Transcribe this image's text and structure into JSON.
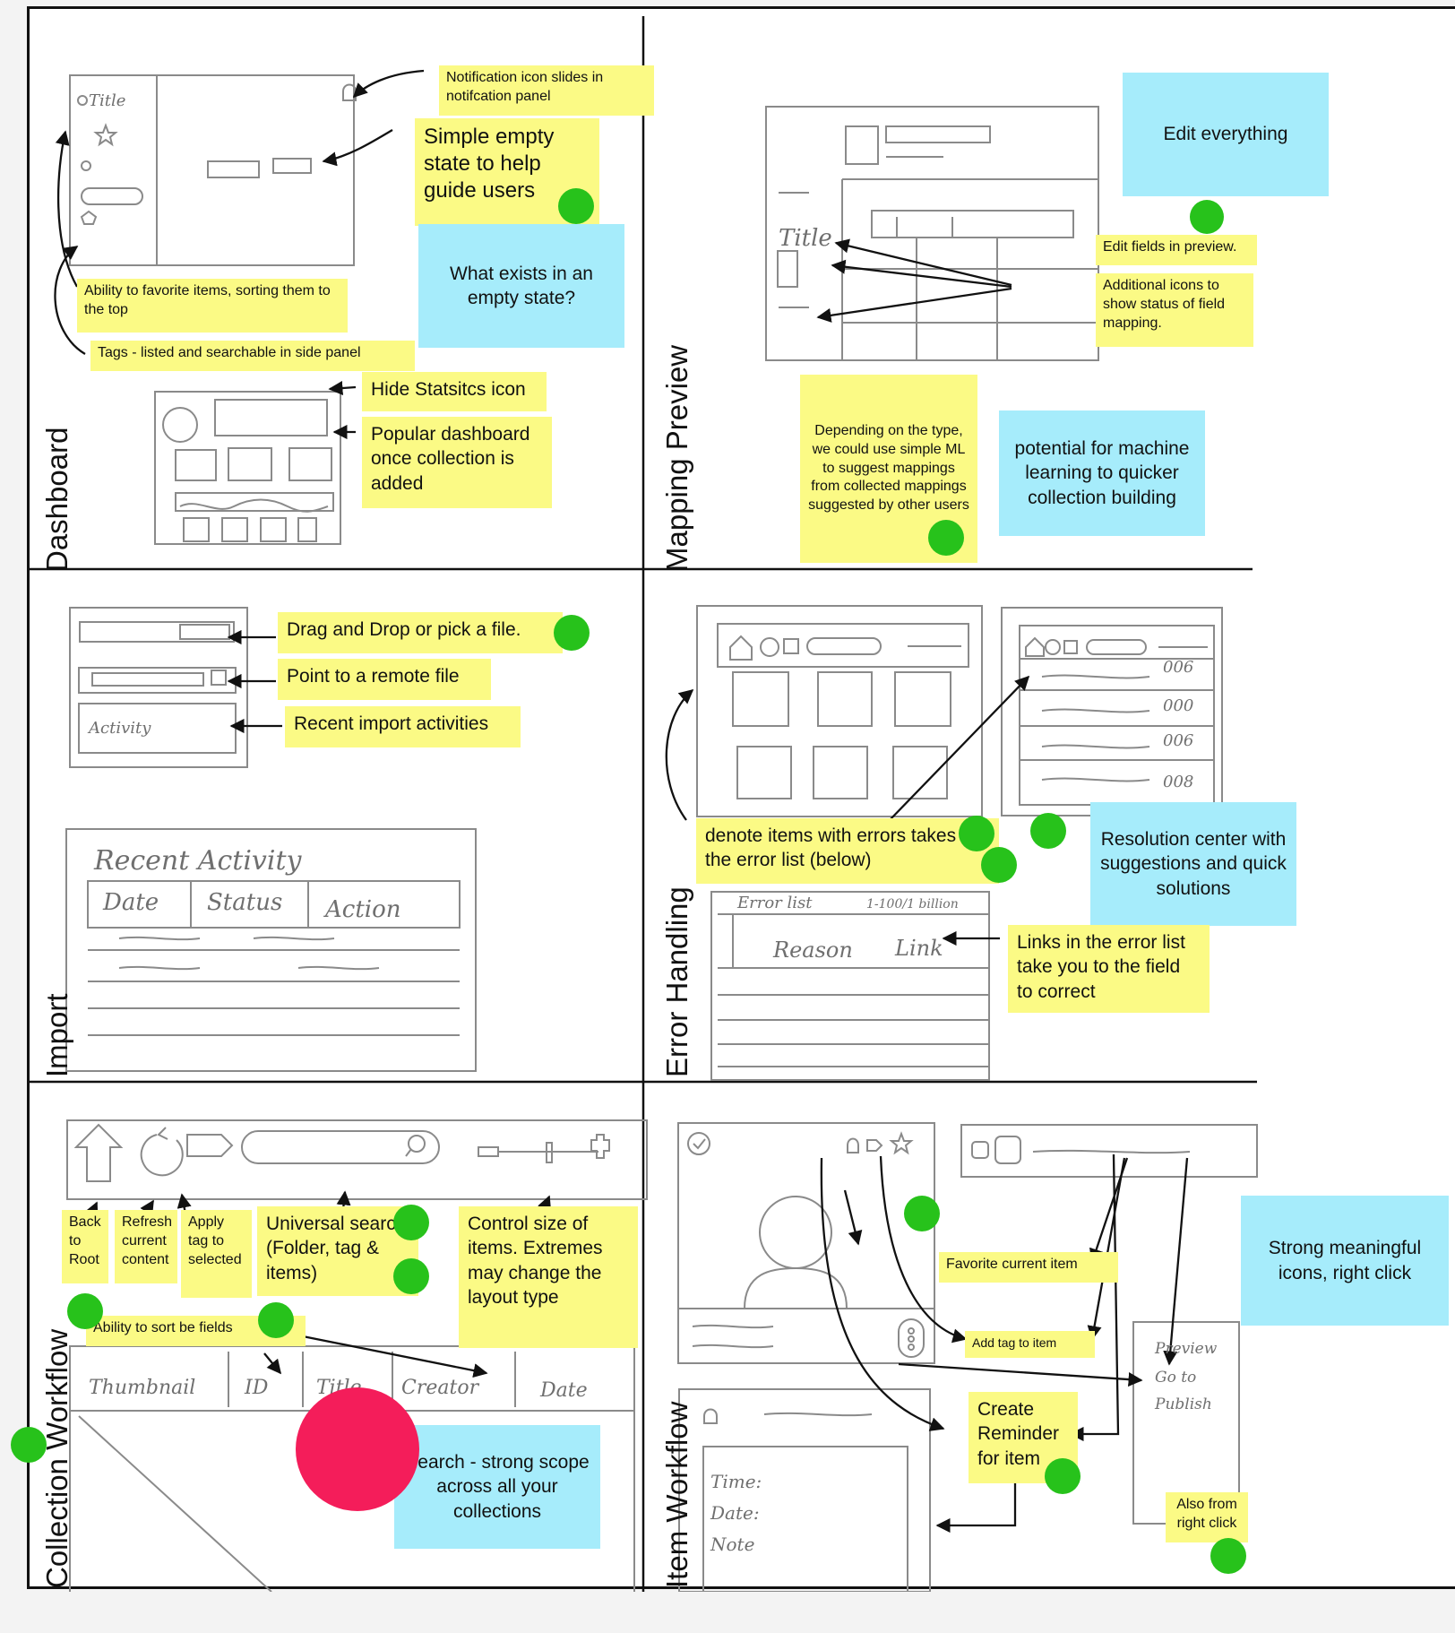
{
  "sections": {
    "dashboard": "Dashboard",
    "mapping_preview": "Mapping Preview",
    "import": "Import",
    "error_handling": "Error Handling",
    "collection_workflow": "Collection Workflow",
    "item_workflow": "Item Workflow"
  },
  "sketch_text": {
    "title": "Title",
    "title2": "Title",
    "recent_activity": "Recent Activity",
    "date": "Date",
    "status": "Status",
    "action": "Action",
    "activity": "Activity",
    "error_list": "Error list",
    "error_range": "1-100/1 billion",
    "reason": "Reason",
    "link": "Link",
    "thumbnail": "Thumbnail",
    "id": "ID",
    "title_col": "Title",
    "creator": "Creator",
    "date_col": "Date",
    "time": "Time:",
    "date_field": "Date:",
    "note": "Note",
    "preview": "Preview",
    "go_to": "Go to",
    "publish": "Publish",
    "cells1": [
      "006",
      "000",
      "006",
      "008"
    ]
  },
  "notes": {
    "notification": "Notification icon slides in notifcation panel",
    "simple_empty": "Simple empty state to help guide users",
    "what_exists": "What exists in an empty state?",
    "favorite_items": "Ability to favorite items, sorting them to the top",
    "tags": "Tags - listed and searchable in side panel",
    "hide_stats": "Hide Statsitcs icon",
    "popular_dash": "Popular dashboard once collection is added",
    "edit_everything": "Edit everything",
    "edit_fields": "Edit fields in preview.",
    "additional_icons": "Additional icons to show status of field mapping.",
    "depending": "Depending on the type, we could use simple ML to suggest mappings from collected mappings suggested by other users",
    "ml_potential": "potential for machine learning to quicker collection building",
    "drag_drop": "Drag and Drop or pick a file.",
    "remote_file": "Point to a remote file",
    "recent_import": "Recent import activities",
    "denote_errors": "denote items with errors takes to the error list (below)",
    "resolution": "Resolution center with suggestions and quick solutions",
    "error_links": "Links in the error list take you to the field to correct",
    "back_root": "Back to Root",
    "refresh": "Refresh current content",
    "apply_tag": "Apply tag to selected",
    "universal_search": "Universal search (Folder, tag & items)",
    "control_size": "Control size of items. Extremes may change the layout type",
    "sort_fields": "Ability to sort be fields",
    "search_scope": "Search - strong scope across all your collections",
    "favorite_current": "Favorite current item",
    "add_tag": "Add tag to item",
    "strong_icons": "Strong meaningful icons, right click",
    "create_reminder": "Create Reminder for item",
    "right_click": "Also from right click"
  },
  "colors": {
    "sticky_yellow": "#fbfa85",
    "sticky_blue": "#a6ecfb",
    "dot_green": "#27c21b",
    "dot_red": "#f41d5a"
  }
}
